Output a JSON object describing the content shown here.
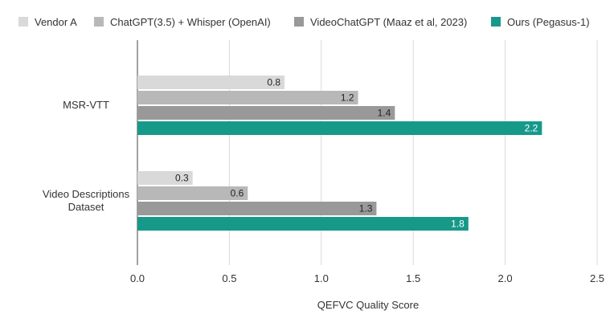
{
  "chart_data": {
    "type": "bar",
    "orientation": "horizontal",
    "title": "",
    "xlabel": "QEFVC Quality Score",
    "ylabel": "",
    "xlim": [
      0,
      2.5
    ],
    "xticks": [
      "0.0",
      "0.5",
      "1.0",
      "1.5",
      "2.0",
      "2.5"
    ],
    "grid": true,
    "legend_position": "top",
    "categories": [
      "MSR-VTT",
      "Video Descriptions Dataset"
    ],
    "category_lines": [
      [
        "MSR-VTT"
      ],
      [
        "Video Descriptions",
        "Dataset"
      ]
    ],
    "series": [
      {
        "name": "Vendor A",
        "values": [
          0.8,
          0.3
        ],
        "color": "#d9d9d9",
        "label_color": "#222222"
      },
      {
        "name": "ChatGPT(3.5) + Whisper (OpenAI)",
        "values": [
          1.2,
          0.6
        ],
        "color": "#b8b8b8",
        "label_color": "#222222"
      },
      {
        "name": "VideoChatGPT (Maaz et al, 2023)",
        "values": [
          1.4,
          1.3
        ],
        "color": "#999999",
        "label_color": "#222222"
      },
      {
        "name": "Ours (Pegasus-1)",
        "values": [
          2.2,
          1.8
        ],
        "color": "#17998a",
        "label_color": "#ffffff"
      }
    ]
  }
}
